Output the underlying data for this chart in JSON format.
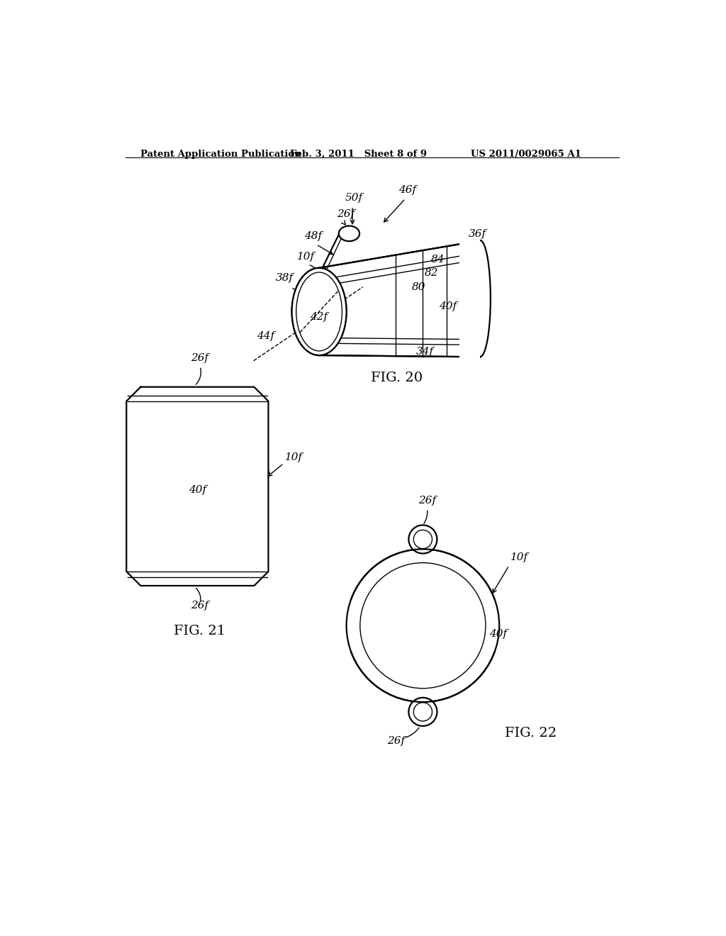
{
  "background_color": "#ffffff",
  "header_left": "Patent Application Publication",
  "header_mid": "Feb. 3, 2011   Sheet 8 of 9",
  "header_right": "US 2011/0029065 A1",
  "fig20_caption": "FIG. 20",
  "fig21_caption": "FIG. 21",
  "fig22_caption": "FIG. 22"
}
